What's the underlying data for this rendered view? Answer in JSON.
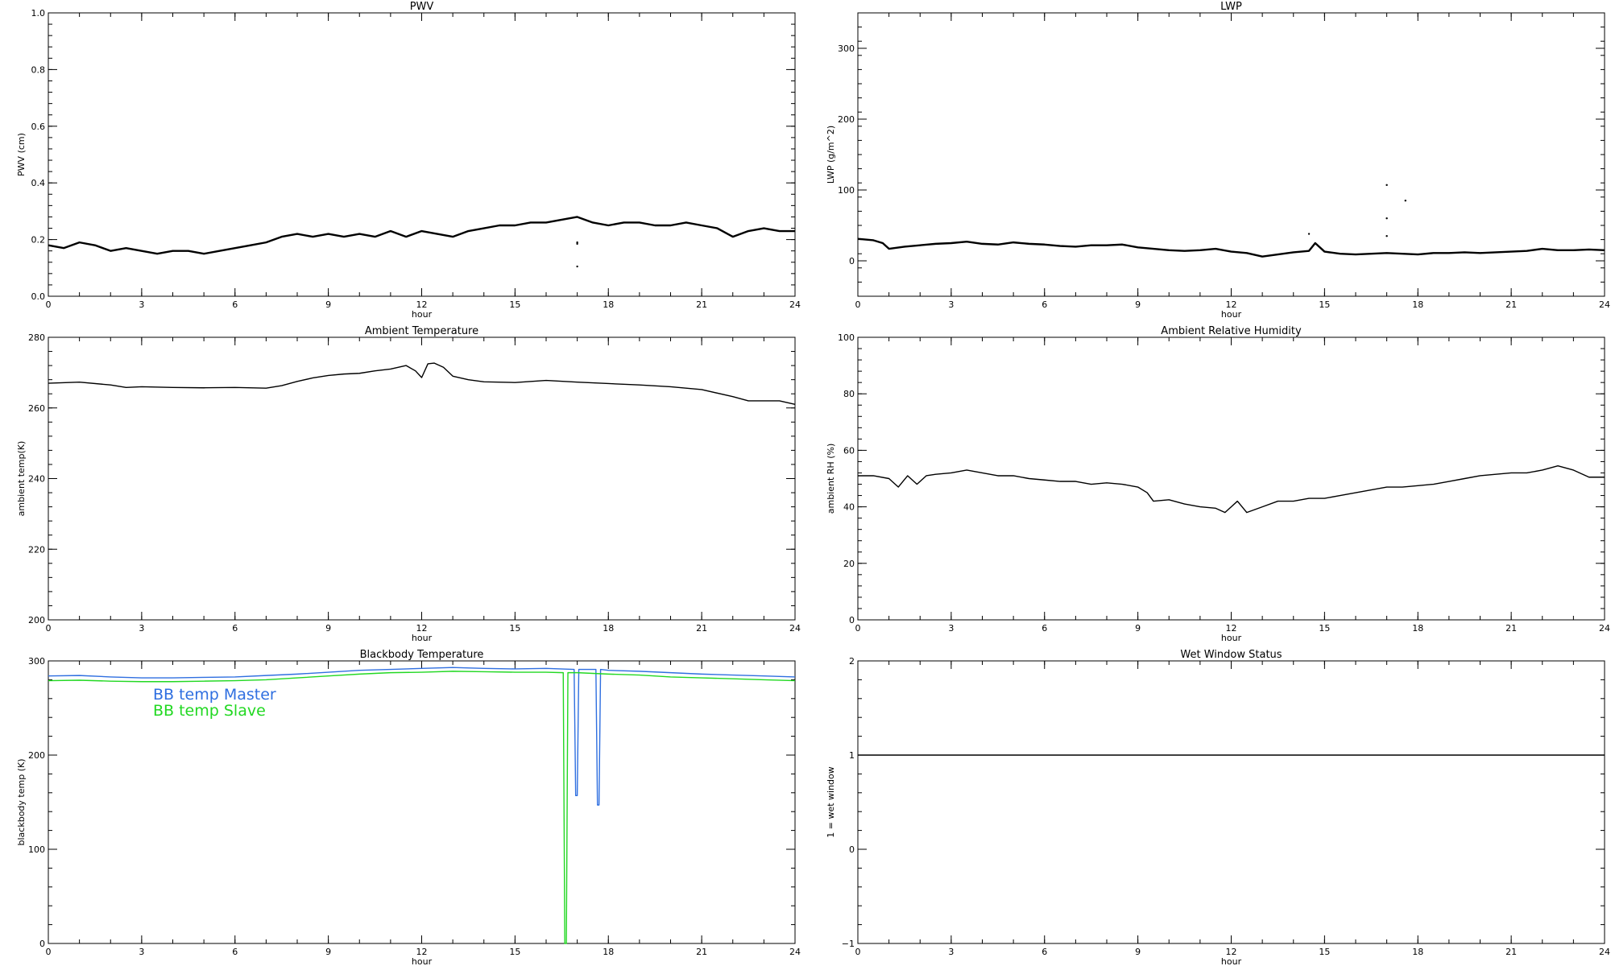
{
  "chart_data": [
    {
      "id": "pwv",
      "type": "line",
      "title": "PWV",
      "xlabel": "hour",
      "ylabel": "PWV (cm)",
      "xlim": [
        0,
        24
      ],
      "ylim": [
        0.0,
        1.0
      ],
      "xticks": [
        0,
        3,
        6,
        9,
        12,
        15,
        18,
        21,
        24
      ],
      "xtick_labels": [
        "0",
        "3",
        "6",
        "9",
        "12",
        "15",
        "18",
        "21",
        "24"
      ],
      "yticks": [
        0.0,
        0.2,
        0.4,
        0.6,
        0.8,
        1.0
      ],
      "ytick_labels": [
        "0.0",
        "0.2",
        "0.4",
        "0.6",
        "0.8",
        "1.0"
      ],
      "grid": false,
      "series": [
        {
          "color": "#000000",
          "x": [
            0,
            0.5,
            1,
            1.5,
            2,
            2.5,
            3,
            3.5,
            4,
            4.5,
            5,
            5.5,
            6,
            6.5,
            7,
            7.5,
            8,
            8.5,
            9,
            9.5,
            10,
            10.5,
            11,
            11.5,
            12,
            12.5,
            13,
            13.5,
            14,
            14.5,
            15,
            15.5,
            16,
            16.5,
            17,
            17.5,
            18,
            18.5,
            19,
            19.5,
            20,
            20.5,
            21,
            21.5,
            22,
            22.5,
            23,
            23.5,
            24
          ],
          "y": [
            0.18,
            0.17,
            0.19,
            0.18,
            0.16,
            0.17,
            0.16,
            0.15,
            0.16,
            0.16,
            0.15,
            0.16,
            0.17,
            0.18,
            0.19,
            0.21,
            0.22,
            0.21,
            0.22,
            0.21,
            0.22,
            0.21,
            0.23,
            0.21,
            0.23,
            0.22,
            0.21,
            0.23,
            0.24,
            0.25,
            0.25,
            0.26,
            0.26,
            0.27,
            0.28,
            0.26,
            0.25,
            0.26,
            0.26,
            0.25,
            0.25,
            0.26,
            0.25,
            0.24,
            0.21,
            0.23,
            0.24,
            0.23,
            0.23
          ]
        }
      ],
      "outliers": [
        {
          "x": 17.0,
          "y": 0.19
        },
        {
          "x": 17.0,
          "y": 0.185
        },
        {
          "x": 17.0,
          "y": 0.105
        }
      ]
    },
    {
      "id": "lwp",
      "type": "line",
      "title": "LWP",
      "xlabel": "hour",
      "ylabel": "LWP (g/m^2)",
      "xlim": [
        0,
        24
      ],
      "ylim": [
        -50,
        350
      ],
      "xticks": [
        0,
        3,
        6,
        9,
        12,
        15,
        18,
        21,
        24
      ],
      "xtick_labels": [
        "0",
        "3",
        "6",
        "9",
        "12",
        "15",
        "18",
        "21",
        "24"
      ],
      "yticks": [
        0,
        100,
        200,
        300
      ],
      "ytick_labels": [
        "0",
        "100",
        "200",
        "300"
      ],
      "grid": false,
      "series": [
        {
          "color": "#000000",
          "x": [
            0,
            0.5,
            0.8,
            1,
            1.5,
            2,
            2.5,
            3,
            3.5,
            4,
            4.5,
            5,
            5.5,
            6,
            6.5,
            7,
            7.5,
            8,
            8.5,
            9,
            9.5,
            10,
            10.5,
            11,
            11.5,
            12,
            12.5,
            13,
            13.5,
            14,
            14.5,
            14.7,
            15,
            15.5,
            16,
            16.5,
            17,
            17.5,
            18,
            18.5,
            19,
            19.5,
            20,
            20.5,
            21,
            21.5,
            22,
            22.5,
            23,
            23.5,
            24
          ],
          "y": [
            31,
            29,
            25,
            17,
            20,
            22,
            24,
            25,
            27,
            24,
            23,
            26,
            24,
            23,
            21,
            20,
            22,
            22,
            23,
            19,
            17,
            15,
            14,
            15,
            17,
            13,
            11,
            6,
            9,
            12,
            14,
            25,
            13,
            10,
            9,
            10,
            11,
            10,
            9,
            11,
            11,
            12,
            11,
            12,
            13,
            14,
            17,
            15,
            15,
            16,
            15
          ]
        }
      ],
      "outliers": [
        {
          "x": 14.5,
          "y": 38
        },
        {
          "x": 17.0,
          "y": 107
        },
        {
          "x": 17.6,
          "y": 85
        },
        {
          "x": 17.0,
          "y": 60
        },
        {
          "x": 17.0,
          "y": 35
        }
      ]
    },
    {
      "id": "ambient-temp",
      "type": "line",
      "title": "Ambient Temperature",
      "xlabel": "hour",
      "ylabel": "ambient temp(K)",
      "xlim": [
        0,
        24
      ],
      "ylim": [
        200,
        280
      ],
      "xticks": [
        0,
        3,
        6,
        9,
        12,
        15,
        18,
        21,
        24
      ],
      "xtick_labels": [
        "0",
        "3",
        "6",
        "9",
        "12",
        "15",
        "18",
        "21",
        "24"
      ],
      "yticks": [
        200,
        220,
        240,
        260,
        280
      ],
      "ytick_labels": [
        "200",
        "220",
        "240",
        "260",
        "280"
      ],
      "grid": false,
      "series": [
        {
          "color": "#000000",
          "x": [
            0,
            1,
            2,
            2.5,
            3,
            4,
            5,
            6,
            7,
            7.5,
            8,
            8.5,
            9,
            9.5,
            10,
            10.5,
            11,
            11.5,
            11.8,
            12,
            12.2,
            12.4,
            12.7,
            13,
            13.5,
            14,
            15,
            16,
            17,
            18,
            19,
            20,
            21,
            22,
            22.5,
            23,
            23.5,
            24
          ],
          "y": [
            267,
            267.3,
            266.5,
            265.8,
            266,
            265.8,
            265.7,
            265.8,
            265.6,
            266.3,
            267.5,
            268.5,
            269.2,
            269.6,
            269.8,
            270.5,
            271,
            272,
            270.5,
            268.6,
            272.5,
            272.7,
            271.5,
            269,
            268,
            267.4,
            267.2,
            267.8,
            267.3,
            266.9,
            266.5,
            266,
            265.2,
            263.2,
            262,
            262,
            262,
            261
          ]
        }
      ]
    },
    {
      "id": "ambient-rh",
      "type": "line",
      "title": "Ambient Relative Humidity",
      "xlabel": "hour",
      "ylabel": "ambient RH (%)",
      "xlim": [
        0,
        24
      ],
      "ylim": [
        0,
        100
      ],
      "xticks": [
        0,
        3,
        6,
        9,
        12,
        15,
        18,
        21,
        24
      ],
      "xtick_labels": [
        "0",
        "3",
        "6",
        "9",
        "12",
        "15",
        "18",
        "21",
        "24"
      ],
      "yticks": [
        0,
        20,
        40,
        60,
        80,
        100
      ],
      "ytick_labels": [
        "0",
        "20",
        "40",
        "60",
        "80",
        "100"
      ],
      "grid": false,
      "series": [
        {
          "color": "#000000",
          "x": [
            0,
            0.5,
            1,
            1.3,
            1.6,
            1.9,
            2.2,
            2.5,
            3,
            3.5,
            4,
            4.5,
            5,
            5.5,
            6,
            6.5,
            7,
            7.5,
            8,
            8.5,
            9,
            9.3,
            9.5,
            10,
            10.5,
            11,
            11.5,
            11.8,
            12,
            12.2,
            12.5,
            13,
            13.5,
            14,
            14.5,
            15,
            15.5,
            16,
            16.5,
            17,
            17.5,
            18,
            18.5,
            19,
            19.5,
            20,
            20.5,
            21,
            21.5,
            22,
            22.5,
            23,
            23.5,
            24
          ],
          "y": [
            51,
            51,
            50,
            47,
            51,
            48,
            51,
            51.5,
            52,
            53,
            52,
            51,
            51,
            50,
            49.5,
            49,
            49,
            48,
            48.5,
            48,
            47,
            45,
            42,
            42.5,
            41,
            40,
            39.5,
            38,
            40,
            42,
            38,
            40,
            42,
            42,
            43,
            43,
            44,
            45,
            46,
            47,
            47,
            47.5,
            48,
            49,
            50,
            51,
            51.5,
            52,
            52,
            53,
            54.5,
            53,
            50.5,
            50.5
          ]
        }
      ]
    },
    {
      "id": "blackbody-temp",
      "type": "line",
      "title": "Blackbody Temperature",
      "xlabel": "hour",
      "ylabel": "blackbody temp (K)",
      "xlim": [
        0,
        24
      ],
      "ylim": [
        0,
        300
      ],
      "xticks": [
        0,
        3,
        6,
        9,
        12,
        15,
        18,
        21,
        24
      ],
      "xtick_labels": [
        "0",
        "3",
        "6",
        "9",
        "12",
        "15",
        "18",
        "21",
        "24"
      ],
      "yticks": [
        0,
        100,
        200,
        300
      ],
      "ytick_labels": [
        "0",
        "100",
        "200",
        "300"
      ],
      "grid": false,
      "legend": "top-left",
      "series": [
        {
          "name": "BB temp Master",
          "color": "#2f6fe0",
          "x": [
            0,
            1,
            2,
            3,
            4,
            5,
            6,
            7,
            8,
            9,
            10,
            11,
            12,
            13,
            14,
            15,
            16,
            16.9,
            16.95,
            17.0,
            17.05,
            17.6,
            17.65,
            17.7,
            17.75,
            18,
            19,
            20,
            21,
            22,
            23,
            24
          ],
          "y": [
            284,
            284.5,
            283,
            282,
            282,
            282.5,
            283,
            284.5,
            286,
            288,
            290,
            291,
            292,
            293,
            292,
            291.5,
            292,
            291,
            157,
            157,
            291,
            291,
            147,
            147,
            291,
            290,
            289,
            287.5,
            286,
            285,
            284,
            283
          ]
        },
        {
          "name": "BB temp Slave",
          "color": "#22d822",
          "x": [
            0,
            1,
            2,
            3,
            4,
            5,
            6,
            7,
            8,
            9,
            10,
            11,
            12,
            13,
            14,
            15,
            16,
            16.55,
            16.6,
            16.65,
            16.7,
            17,
            18,
            19,
            20,
            21,
            22,
            23,
            24
          ],
          "y": [
            279,
            279.5,
            278.5,
            278,
            278,
            278.5,
            279,
            280,
            282,
            284,
            286,
            287.5,
            288,
            289,
            288.5,
            288,
            288,
            287.5,
            0,
            0,
            287.5,
            287.5,
            286,
            285,
            283,
            282,
            281,
            280,
            279
          ]
        }
      ]
    },
    {
      "id": "wet-window",
      "type": "line",
      "title": "Wet Window Status",
      "xlabel": "hour",
      "ylabel": "1 = wet window",
      "xlim": [
        0,
        24
      ],
      "ylim": [
        -1,
        2
      ],
      "xticks": [
        0,
        3,
        6,
        9,
        12,
        15,
        18,
        21,
        24
      ],
      "xtick_labels": [
        "0",
        "3",
        "6",
        "9",
        "12",
        "15",
        "18",
        "21",
        "24"
      ],
      "yticks": [
        -1,
        0,
        1,
        2
      ],
      "ytick_labels": [
        "−1",
        "0",
        "1",
        "2"
      ],
      "grid": false,
      "series": [
        {
          "color": "#000000",
          "x": [
            0,
            24
          ],
          "y": [
            1,
            1
          ]
        }
      ]
    }
  ]
}
